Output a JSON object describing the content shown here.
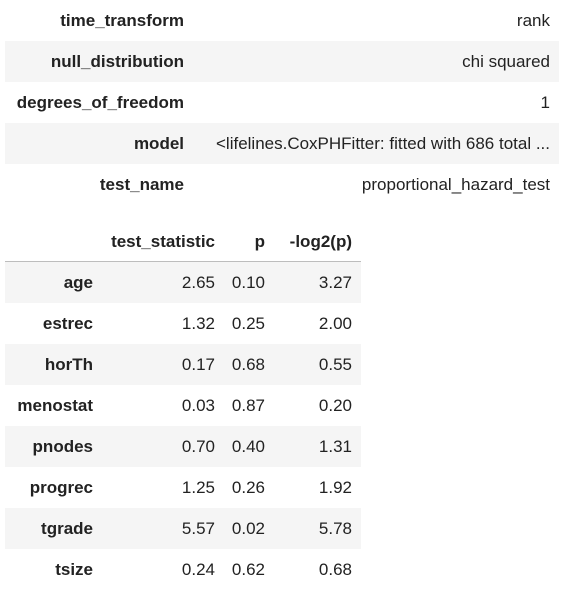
{
  "summary": {
    "rows": [
      {
        "key": "time_transform",
        "value": "rank"
      },
      {
        "key": "null_distribution",
        "value": "chi squared"
      },
      {
        "key": "degrees_of_freedom",
        "value": "1"
      },
      {
        "key": "model",
        "value": "<lifelines.CoxPHFitter: fitted with 686 total ..."
      },
      {
        "key": "test_name",
        "value": "proportional_hazard_test"
      }
    ]
  },
  "results": {
    "headers": {
      "index": "",
      "test_statistic": "test_statistic",
      "p": "p",
      "neg_log2_p": "-log2(p)"
    },
    "rows": [
      {
        "name": "age",
        "test_statistic": "2.65",
        "p": "0.10",
        "neg_log2_p": "3.27"
      },
      {
        "name": "estrec",
        "test_statistic": "1.32",
        "p": "0.25",
        "neg_log2_p": "2.00"
      },
      {
        "name": "horTh",
        "test_statistic": "0.17",
        "p": "0.68",
        "neg_log2_p": "0.55"
      },
      {
        "name": "menostat",
        "test_statistic": "0.03",
        "p": "0.87",
        "neg_log2_p": "0.20"
      },
      {
        "name": "pnodes",
        "test_statistic": "0.70",
        "p": "0.40",
        "neg_log2_p": "1.31"
      },
      {
        "name": "progrec",
        "test_statistic": "1.25",
        "p": "0.26",
        "neg_log2_p": "1.92"
      },
      {
        "name": "tgrade",
        "test_statistic": "5.57",
        "p": "0.02",
        "neg_log2_p": "5.78"
      },
      {
        "name": "tsize",
        "test_statistic": "0.24",
        "p": "0.62",
        "neg_log2_p": "0.68"
      }
    ]
  }
}
